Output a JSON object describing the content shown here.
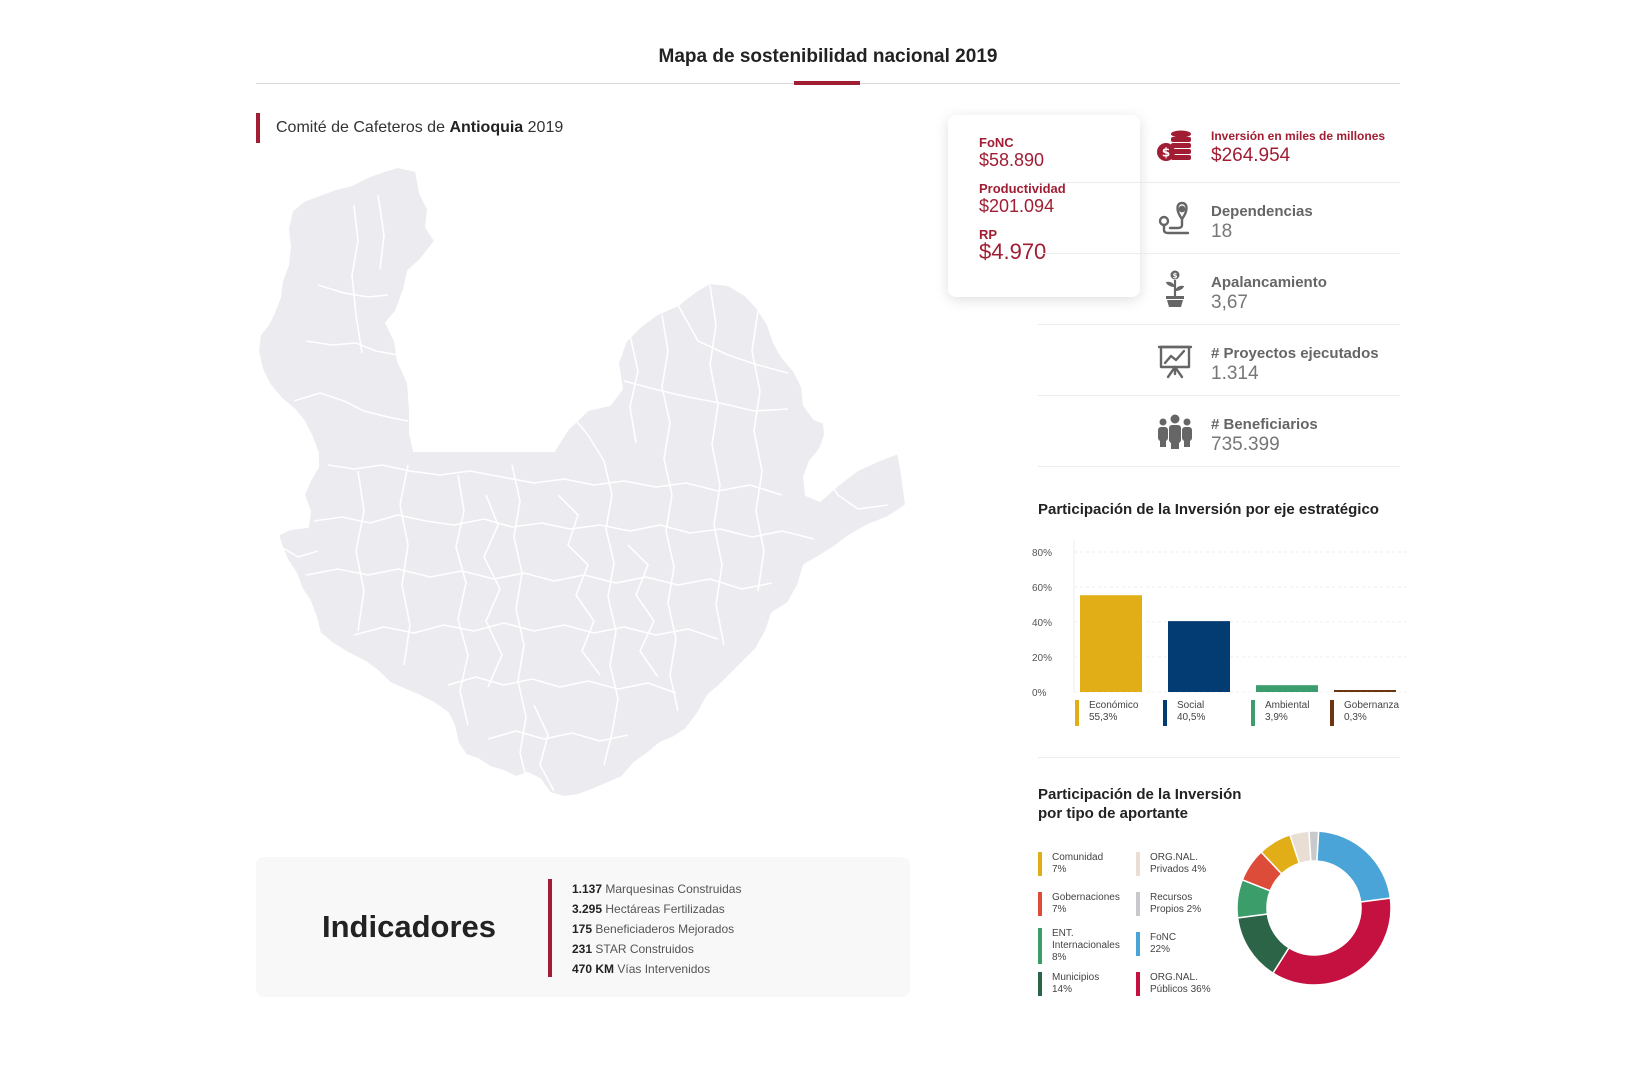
{
  "header": {
    "title": "Mapa de sostenibilidad nacional 2019"
  },
  "committee": {
    "prefix": "Comité de Cafeteros de",
    "region": "Antioquia",
    "year": "2019"
  },
  "summary": {
    "fonc_label": "FoNC",
    "fonc_value": "$58.890",
    "prod_label": "Productividad",
    "prod_value": "$201.094",
    "rp_label": "RP",
    "rp_value": "$4.970"
  },
  "stats": [
    {
      "label": "Inversión en miles de millones",
      "value": "$264.954",
      "icon": "coins-icon"
    },
    {
      "label": "Dependencias",
      "value": "18",
      "icon": "location-route-icon"
    },
    {
      "label": "Apalancamiento",
      "value": "3,67",
      "icon": "money-plant-icon"
    },
    {
      "label": "# Proyectos ejecutados",
      "value": "1.314",
      "icon": "presentation-chart-icon"
    },
    {
      "label": "# Beneficiarios",
      "value": "735.399",
      "icon": "people-group-icon"
    }
  ],
  "indicators": {
    "title": "Indicadores",
    "items": [
      {
        "value": "1.137",
        "label": "Marquesinas Construidas"
      },
      {
        "value": "3.295",
        "label": "Hectáreas Fertilizadas"
      },
      {
        "value": "175",
        "label": "Beneficiaderos Mejorados"
      },
      {
        "value": "231",
        "label": "STAR Construidos"
      },
      {
        "value": "470 KM",
        "label": "Vías Intervenidos"
      }
    ]
  },
  "chart_data": [
    {
      "type": "bar",
      "title": "Participación de la Inversión por eje estratégico",
      "categories": [
        "Económico",
        "Social",
        "Ambiental",
        "Gobernanza"
      ],
      "values": [
        55.3,
        40.5,
        3.9,
        0.3
      ],
      "value_labels": [
        "55,3%",
        "40,5%",
        "3,9%",
        "0,3%"
      ],
      "colors": [
        "#e2ae18",
        "#033b73",
        "#3c9d6e",
        "#6b3510"
      ],
      "yticks": [
        "80%",
        "60%",
        "40%",
        "20%",
        "0%"
      ],
      "ylim": [
        0,
        80
      ],
      "xlabel": "",
      "ylabel": ""
    },
    {
      "type": "pie",
      "title_line1": "Participación de la Inversión",
      "title_line2": "por tipo de aportante",
      "slices": [
        {
          "name": "FoNC",
          "label": "22%",
          "value": 22,
          "color": "#4aa4d8"
        },
        {
          "name": "ORG.NAL. Públicos",
          "label": "36%",
          "value": 36,
          "color": "#c4113f"
        },
        {
          "name": "Municipios",
          "label": "14%",
          "value": 14,
          "color": "#2b6447"
        },
        {
          "name": "ENT. Internacionales",
          "label": "8%",
          "value": 8,
          "color": "#3b9e6a"
        },
        {
          "name": "Gobernaciones",
          "label": "7%",
          "value": 7,
          "color": "#dd4b39"
        },
        {
          "name": "Comunidad",
          "label": "7%",
          "value": 7,
          "color": "#e2ae18"
        },
        {
          "name": "ORG.NAL. Privados",
          "label": "4%",
          "value": 4,
          "color": "#e8ded3"
        },
        {
          "name": "Recursos Propios",
          "label": "2%",
          "value": 2,
          "color": "#c7c9cc"
        }
      ],
      "legend": {
        "comunidad": [
          "Comunidad",
          "7%"
        ],
        "gobernaciones": [
          "Gobernaciones",
          "7%"
        ],
        "internacionales": [
          "ENT.",
          "Internacionales",
          "8%"
        ],
        "municipios": [
          "Municipios",
          "14%"
        ],
        "privados": [
          "ORG.NAL.",
          "Privados 4%"
        ],
        "propios": [
          "Recursos",
          "Propios 2%"
        ],
        "fonc": [
          "FoNC",
          "22%"
        ],
        "publicos": [
          "ORG.NAL.",
          "Públicos 36%"
        ]
      }
    }
  ],
  "colors": {
    "accent": "#a11d33",
    "map_fill": "#ebebf0",
    "map_border": "#ffffff"
  }
}
